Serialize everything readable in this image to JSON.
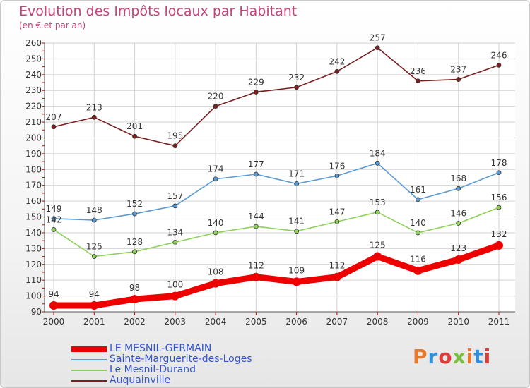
{
  "header": {
    "title": "Evolution des Impôts locaux par Habitant",
    "subtitle": "(en € et par an)"
  },
  "logo": {
    "text": "Proxiti",
    "colors": [
      "#e8792c",
      "#2f8fd8",
      "#e23a3a",
      "#7cc043"
    ]
  },
  "chart_data": {
    "type": "line",
    "x": [
      2000,
      2001,
      2002,
      2003,
      2004,
      2005,
      2006,
      2007,
      2008,
      2009,
      2010,
      2011
    ],
    "ylim": [
      90,
      260
    ],
    "yticks": [
      90,
      100,
      110,
      120,
      130,
      140,
      150,
      160,
      170,
      180,
      190,
      200,
      210,
      220,
      230,
      240,
      250,
      260
    ],
    "grid": true,
    "legend_position": "bottom-left",
    "series": [
      {
        "name": "LE MESNIL-GERMAIN",
        "color": "#ee0000",
        "values": [
          94,
          94,
          98,
          100,
          108,
          112,
          109,
          112,
          125,
          116,
          123,
          132
        ]
      },
      {
        "name": "Sainte-Marguerite-des-Loges",
        "color": "#5b9bd5",
        "values": [
          149,
          148,
          152,
          157,
          174,
          177,
          171,
          176,
          184,
          161,
          168,
          178
        ]
      },
      {
        "name": "Le Mesnil-Durand",
        "color": "#8fd15a",
        "values": [
          142,
          125,
          128,
          134,
          140,
          144,
          141,
          147,
          153,
          140,
          146,
          156
        ]
      },
      {
        "name": "Auquainville",
        "color": "#7a1f1f",
        "values": [
          207,
          213,
          201,
          195,
          220,
          229,
          232,
          242,
          257,
          236,
          237,
          246
        ]
      }
    ]
  }
}
